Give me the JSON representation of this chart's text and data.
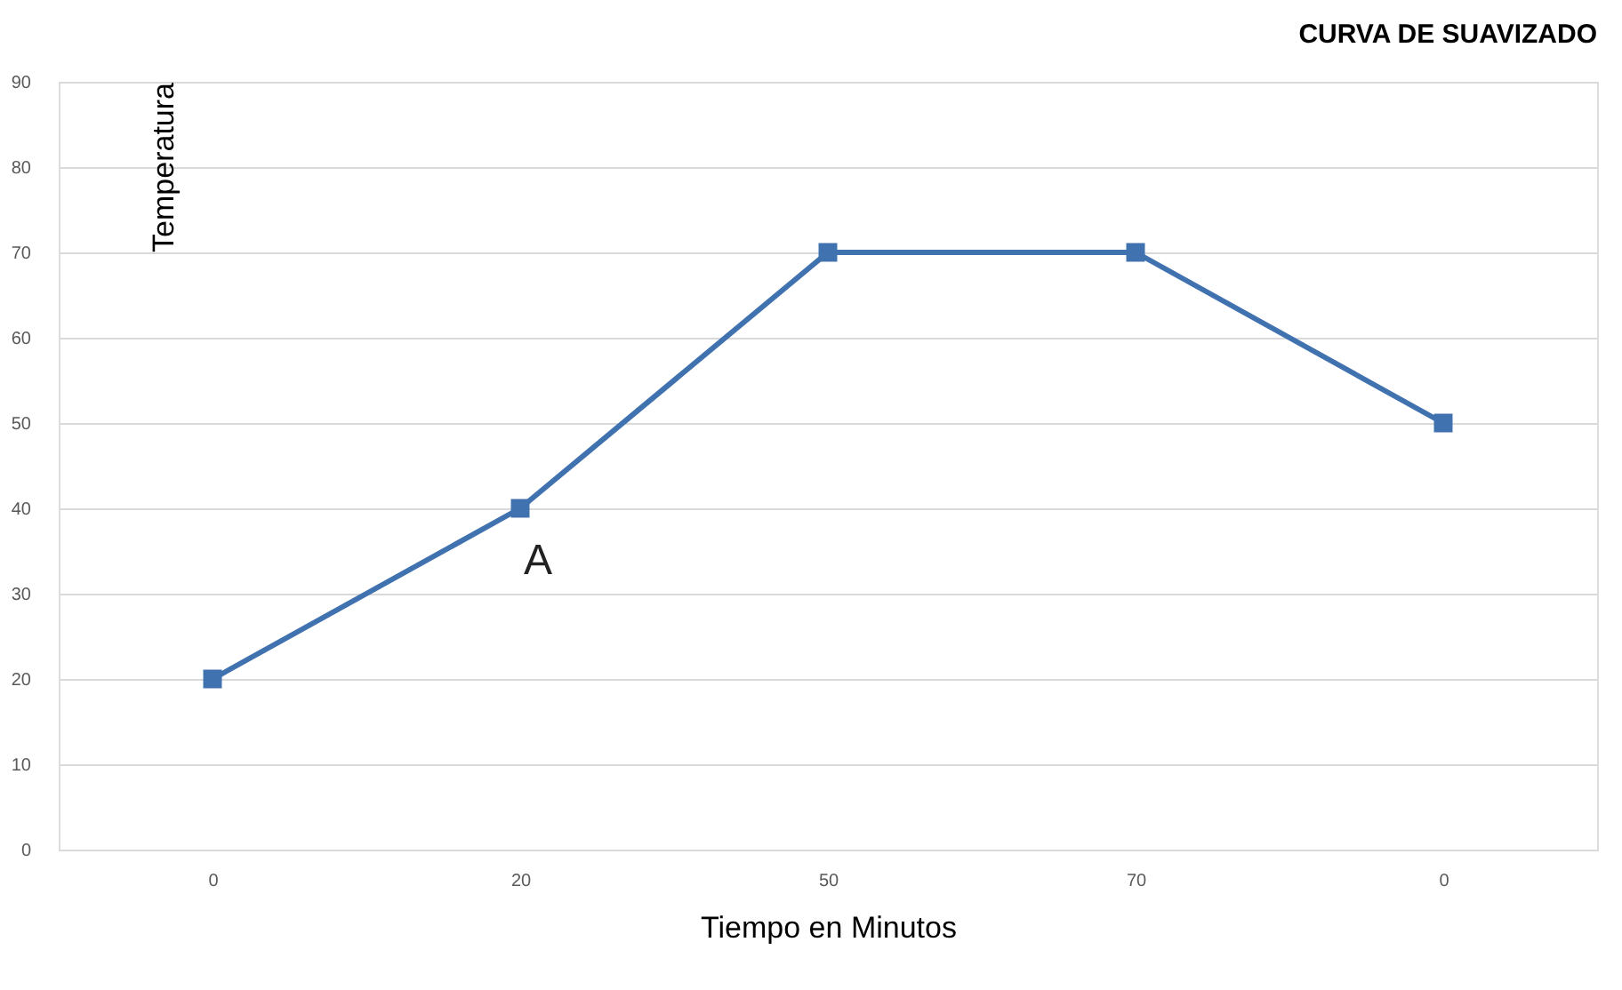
{
  "chart_data": {
    "type": "line",
    "title": "CURVA DE SUAVIZADO",
    "xlabel": "Tiempo en Minutos",
    "ylabel": "Temperatura",
    "categories": [
      "0",
      "20",
      "50",
      "70",
      "0"
    ],
    "series": [
      {
        "color": "#4072b0",
        "values": [
          20,
          40,
          70,
          70,
          50
        ]
      }
    ],
    "ylim": [
      0,
      90
    ],
    "yticks": [
      0,
      10,
      20,
      30,
      40,
      50,
      60,
      70,
      80,
      90
    ],
    "grid": "y",
    "marker": "square",
    "line_style": "solid",
    "annotations": [
      {
        "text": "A",
        "x": "20",
        "y": 40
      }
    ]
  }
}
